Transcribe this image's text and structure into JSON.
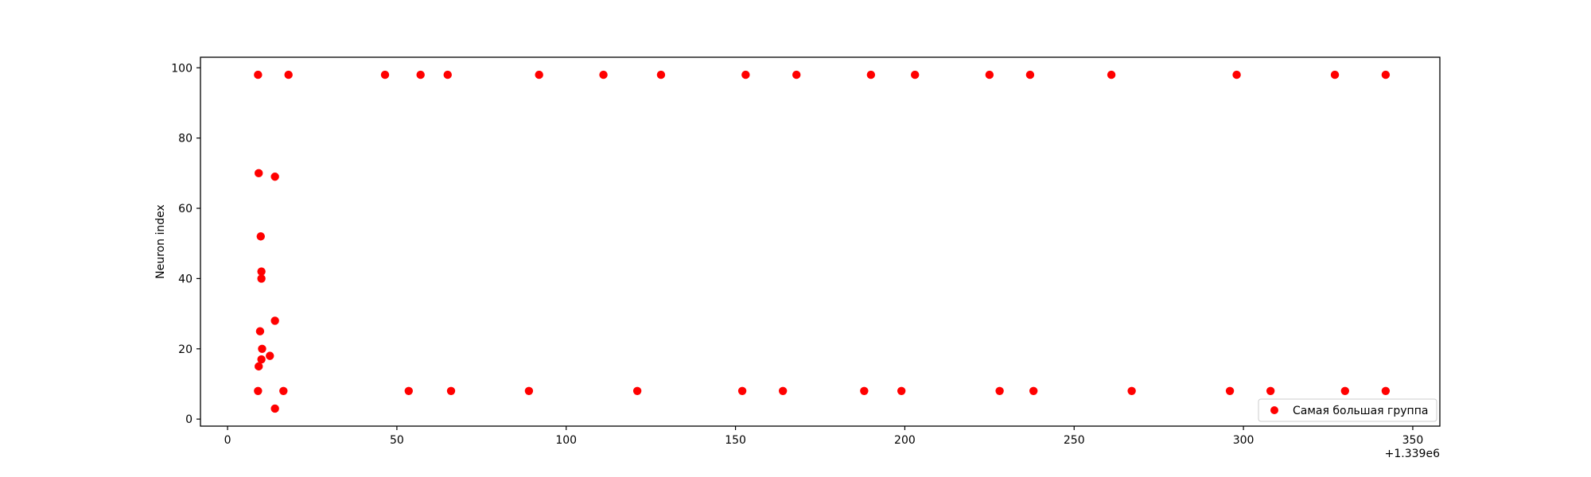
{
  "chart_data": {
    "type": "scatter",
    "title": "",
    "xlabel": "",
    "ylabel": "Neuron index",
    "x_offset_label": "+1.339e6",
    "xlim": [
      -8,
      358
    ],
    "ylim": [
      -2,
      103
    ],
    "xticks": [
      0,
      50,
      100,
      150,
      200,
      250,
      300,
      350
    ],
    "yticks": [
      0,
      20,
      40,
      60,
      80,
      100
    ],
    "grid": false,
    "legend_position": "lower-right",
    "series": [
      {
        "name": "Самая большая группа",
        "color": "#ff0000",
        "points": [
          {
            "x": 9,
            "y": 98
          },
          {
            "x": 18,
            "y": 98
          },
          {
            "x": 46.5,
            "y": 98
          },
          {
            "x": 57,
            "y": 98
          },
          {
            "x": 65,
            "y": 98
          },
          {
            "x": 92,
            "y": 98
          },
          {
            "x": 111,
            "y": 98
          },
          {
            "x": 128,
            "y": 98
          },
          {
            "x": 153,
            "y": 98
          },
          {
            "x": 168,
            "y": 98
          },
          {
            "x": 190,
            "y": 98
          },
          {
            "x": 203,
            "y": 98
          },
          {
            "x": 225,
            "y": 98
          },
          {
            "x": 237,
            "y": 98
          },
          {
            "x": 261,
            "y": 98
          },
          {
            "x": 298,
            "y": 98
          },
          {
            "x": 327,
            "y": 98
          },
          {
            "x": 342,
            "y": 98
          },
          {
            "x": 9.2,
            "y": 70
          },
          {
            "x": 14,
            "y": 69
          },
          {
            "x": 9.8,
            "y": 52
          },
          {
            "x": 10,
            "y": 42
          },
          {
            "x": 10,
            "y": 40
          },
          {
            "x": 9.6,
            "y": 25
          },
          {
            "x": 14,
            "y": 28
          },
          {
            "x": 10.2,
            "y": 20
          },
          {
            "x": 12.5,
            "y": 18
          },
          {
            "x": 10,
            "y": 17
          },
          {
            "x": 9.2,
            "y": 15
          },
          {
            "x": 14,
            "y": 3
          },
          {
            "x": 9,
            "y": 8
          },
          {
            "x": 16.5,
            "y": 8
          },
          {
            "x": 53.5,
            "y": 8
          },
          {
            "x": 66,
            "y": 8
          },
          {
            "x": 89,
            "y": 8
          },
          {
            "x": 121,
            "y": 8
          },
          {
            "x": 152,
            "y": 8
          },
          {
            "x": 164,
            "y": 8
          },
          {
            "x": 188,
            "y": 8
          },
          {
            "x": 199,
            "y": 8
          },
          {
            "x": 228,
            "y": 8
          },
          {
            "x": 238,
            "y": 8
          },
          {
            "x": 267,
            "y": 8
          },
          {
            "x": 296,
            "y": 8
          },
          {
            "x": 308,
            "y": 8
          },
          {
            "x": 330,
            "y": 8
          },
          {
            "x": 342,
            "y": 8
          }
        ]
      }
    ]
  }
}
